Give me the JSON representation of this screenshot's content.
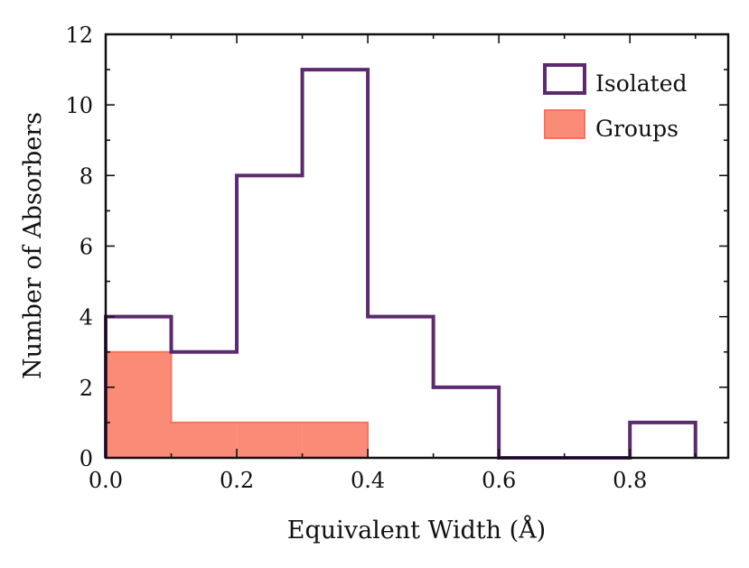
{
  "chart_data": {
    "type": "histogram",
    "xlabel": "Equivalent Width (Å)",
    "ylabel": "Number of Absorbers",
    "xlim": [
      0.0,
      0.95
    ],
    "ylim": [
      0,
      12
    ],
    "x_ticks": [
      0.0,
      0.2,
      0.4,
      0.6,
      0.8
    ],
    "x_tick_labels": [
      "0.0",
      "0.2",
      "0.4",
      "0.6",
      "0.8"
    ],
    "x_minor_ticks": [
      0.1,
      0.3,
      0.5,
      0.7,
      0.9
    ],
    "y_ticks": [
      0,
      2,
      4,
      6,
      8,
      10,
      12
    ],
    "y_tick_labels": [
      "0",
      "2",
      "4",
      "6",
      "8",
      "10",
      "12"
    ],
    "y_minor_ticks": [
      1,
      3,
      5,
      7,
      9,
      11
    ],
    "grid": false,
    "legend_position": "top-right",
    "series": [
      {
        "name": "Isolated",
        "style": "step",
        "color": "#5c2a6e",
        "bin_edges": [
          0.0,
          0.1,
          0.2,
          0.3,
          0.4,
          0.5,
          0.6,
          0.7,
          0.8,
          0.9
        ],
        "counts": [
          4,
          3,
          8,
          11,
          4,
          2,
          0,
          0,
          1
        ]
      },
      {
        "name": "Groups",
        "style": "filled",
        "color": "#fa8b77",
        "bin_edges": [
          0.0,
          0.1,
          0.2,
          0.3,
          0.4
        ],
        "counts": [
          3,
          1,
          1,
          1
        ]
      }
    ]
  }
}
